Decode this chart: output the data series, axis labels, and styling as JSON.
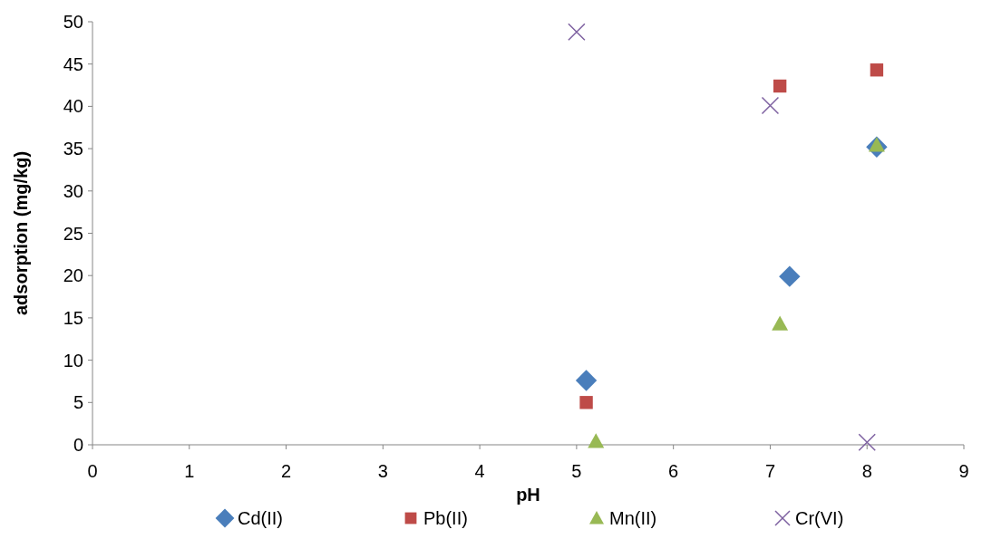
{
  "chart_data": {
    "type": "scatter",
    "xlabel": "pH",
    "ylabel": "adsorption (mg/kg)",
    "xlim": [
      0,
      9
    ],
    "xticks": [
      0,
      1,
      2,
      3,
      4,
      5,
      6,
      7,
      8,
      9
    ],
    "ylim": [
      0,
      50
    ],
    "yticks": [
      0,
      5,
      10,
      15,
      20,
      25,
      30,
      35,
      40,
      45,
      50
    ],
    "legend": "bottom",
    "grid": false,
    "series": [
      {
        "name": "Cd(II)",
        "color": "#4a7ebb",
        "marker": "diamond",
        "x": [
          5.1,
          7.2,
          8.1
        ],
        "values": [
          7.6,
          19.9,
          35.2
        ]
      },
      {
        "name": "Pb(II)",
        "color": "#be4b48",
        "marker": "square",
        "x": [
          5.1,
          7.1,
          8.1
        ],
        "values": [
          5.0,
          42.4,
          44.3
        ]
      },
      {
        "name": "Mn(II)",
        "color": "#98b954",
        "marker": "triangle",
        "x": [
          5.2,
          7.1,
          8.1
        ],
        "values": [
          0.4,
          14.3,
          35.4
        ]
      },
      {
        "name": "Cr(VI)",
        "color": "#7d60a0",
        "marker": "cross",
        "x": [
          5,
          7,
          8
        ],
        "values": [
          48.8,
          40.1,
          0.3
        ]
      }
    ]
  }
}
